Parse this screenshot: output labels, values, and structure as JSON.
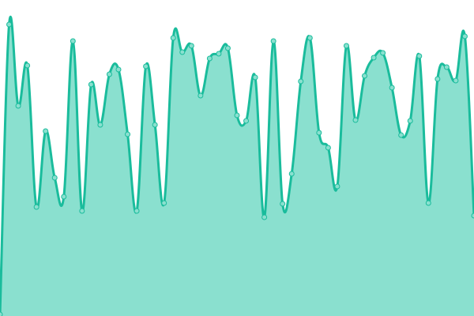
{
  "chart_data": {
    "type": "area",
    "title": "",
    "xlabel": "",
    "ylabel": "",
    "axes_visible": false,
    "grid": false,
    "legend": "none",
    "smooth": true,
    "ylim": [
      0,
      400
    ],
    "x": [
      0,
      1,
      2,
      3,
      4,
      5,
      6,
      7,
      8,
      9,
      10,
      11,
      12,
      13,
      14,
      15,
      16,
      17,
      18,
      19,
      20,
      21,
      22,
      23,
      24,
      25,
      26,
      27,
      28,
      29,
      30,
      31,
      32,
      33,
      34,
      35,
      36,
      37,
      38,
      39,
      40,
      41,
      42,
      43,
      44,
      45,
      46,
      47,
      48,
      49,
      50,
      51,
      52
    ],
    "values": [
      2,
      369,
      266,
      317,
      138,
      234,
      175,
      151,
      348,
      133,
      293,
      242,
      306,
      312,
      230,
      133,
      316,
      242,
      143,
      352,
      334,
      342,
      279,
      326,
      332,
      339,
      254,
      247,
      302,
      125,
      348,
      142,
      180,
      297,
      352,
      232,
      213,
      164,
      342,
      248,
      304,
      327,
      333,
      289,
      229,
      247,
      329,
      143,
      300,
      315,
      298,
      354,
      127
    ],
    "colors": {
      "line": "#1abc9c",
      "fill": "#8ae0cf",
      "point": "#8ae0cf"
    }
  }
}
